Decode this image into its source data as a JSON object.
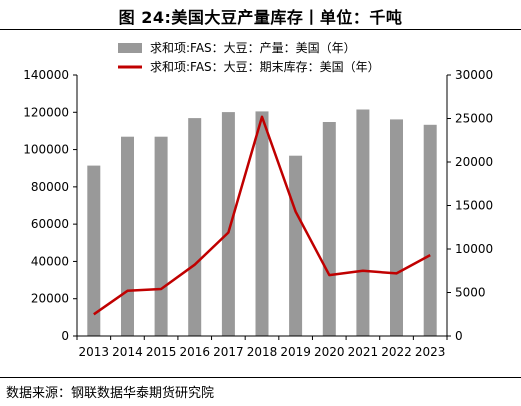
{
  "title": "图 24:美国大豆产量库存丨单位：千吨",
  "source": "数据来源：钢联数据华泰期货研究院",
  "chart_data": {
    "type": "bar",
    "categories": [
      "2013",
      "2014",
      "2015",
      "2016",
      "2017",
      "2018",
      "2019",
      "2020",
      "2021",
      "2022",
      "2023"
    ],
    "series": [
      {
        "name": "求和项:FAS：大豆：产量：美国（年）",
        "type": "bar",
        "axis": "left",
        "color": "#999999",
        "values": [
          91400,
          106900,
          106900,
          116900,
          120100,
          120500,
          96700,
          114800,
          121500,
          116200,
          113300
        ]
      },
      {
        "name": "求和项:FAS：大豆：期末库存：美国（年）",
        "type": "line",
        "axis": "right",
        "color": "#c00000",
        "values": [
          2500,
          5200,
          5400,
          8200,
          11900,
          25200,
          14300,
          7000,
          7500,
          7200,
          9300
        ]
      }
    ],
    "y_left": {
      "min": 0,
      "max": 140000,
      "ticks": [
        0,
        20000,
        40000,
        60000,
        80000,
        100000,
        120000,
        140000
      ]
    },
    "y_right": {
      "min": 0,
      "max": 30000,
      "ticks": [
        0,
        5000,
        10000,
        15000,
        20000,
        25000,
        30000
      ]
    },
    "grid": false,
    "legend_position": "top"
  }
}
